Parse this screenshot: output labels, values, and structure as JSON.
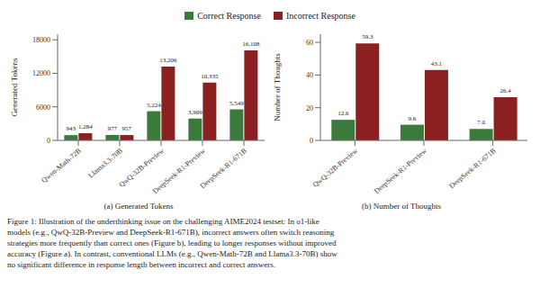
{
  "chart_data": [
    {
      "type": "bar",
      "subtitle": "(a) Generated Tokens",
      "ylabel": "Generated Tokens",
      "categories": [
        "Qwen-Math-72B",
        "Llama3.3-70B",
        "QwQ-32B-Preview",
        "DeepSeek-R1-Preview",
        "DeepSeek-R1-671B"
      ],
      "series": [
        {
          "name": "Correct Response",
          "color": "#3a7a3a",
          "values": [
            943,
            977,
            5224,
            3909,
            5549
          ],
          "value_labels": [
            "943",
            "977",
            "5,224",
            "3,909",
            "5,549"
          ]
        },
        {
          "name": "Incorrect Response",
          "color": "#8b2020",
          "values": [
            1284,
            957,
            13206,
            10335,
            16108
          ],
          "value_labels": [
            "1,284",
            "957",
            "13,206",
            "10,335",
            "16,108"
          ]
        }
      ],
      "ylim": [
        0,
        19000
      ],
      "yticks": [
        0,
        6000,
        12000,
        18000
      ],
      "grid": false,
      "data_labels": true,
      "legend": "top"
    },
    {
      "type": "bar",
      "subtitle": "(b) Number of Thoughts",
      "ylabel": "Number of Thoughts",
      "categories": [
        "QwQ-32B-Preview",
        "DeepSeek-R1-Preview",
        "DeepSeek-R1-671B"
      ],
      "series": [
        {
          "name": "Correct Response",
          "color": "#3a7a3a",
          "values": [
            12.6,
            9.6,
            7.0
          ],
          "value_labels": [
            "12.6",
            "9.6",
            "7.0"
          ]
        },
        {
          "name": "Incorrect Response",
          "color": "#8b2020",
          "values": [
            59.3,
            43.1,
            26.4
          ],
          "value_labels": [
            "59.3",
            "43.1",
            "26.4"
          ]
        }
      ],
      "ylim": [
        0,
        65
      ],
      "yticks": [
        0,
        20,
        40,
        60
      ],
      "grid": false,
      "data_labels": true
    }
  ],
  "annotations": [
    "Figure 1: Illustration of the underthinking issue on the challenging AIME2024 testset: In o1-like",
    "models (e.g., QwQ-32B-Preview and DeepSeek-R1-671B), incorrect answers often switch reasoning",
    "strategies more frequently than correct ones (Figure b), leading to longer responses without improved",
    "accuracy (Figure a). In contrast, conventional LLMs (e.g., Qwen-Math-72B and Llama3.3-70B) show",
    "no significant difference in response length between incorrect and correct answers."
  ]
}
